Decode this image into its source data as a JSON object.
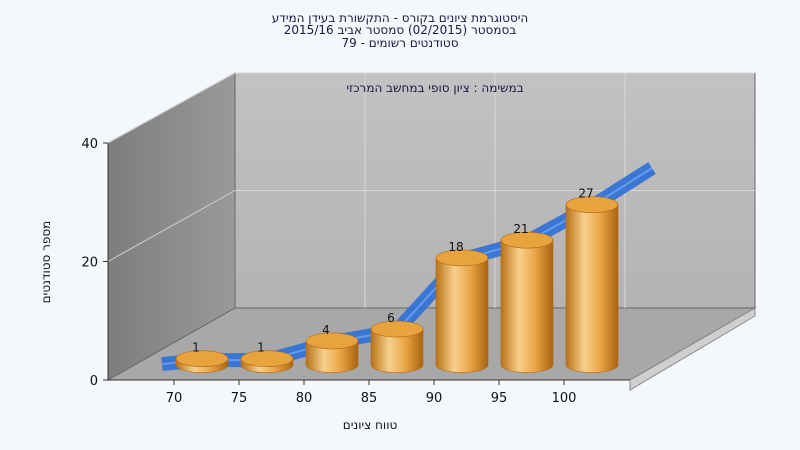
{
  "chart_data": {
    "type": "bar",
    "title_lines": [
      "היסטוגרמת ציונים בקורס - התקשורת בעידן המידע",
      "בסמסטר  (02/2015)  סמסטר אביב 2015/16",
      "סטודנטים רשומים - 79"
    ],
    "subtitle": "במשימה : ציון סופי במחשב המרכזי",
    "xlabel": "טווח ציונים",
    "ylabel": "מספר סטודנטים",
    "categories": [
      "70",
      "75",
      "80",
      "85",
      "90",
      "95",
      "100"
    ],
    "series": [
      {
        "values": [
          1,
          1,
          4,
          6,
          18,
          21,
          27
        ]
      }
    ],
    "trend": [
      1,
      1,
      4,
      6,
      18,
      21,
      27
    ],
    "yticks": [
      "0",
      "20",
      "40"
    ],
    "ylim": [
      0,
      40
    ],
    "grid": true,
    "colors": {
      "bar": "#e8a33e",
      "bar_light": "#f7d08c",
      "bar_dark": "#b06a14",
      "trend": "#2e6fd6",
      "back_wall": "#b9b9b9",
      "side_wall": "#8f8f8f",
      "floor": "#a9a9a9"
    }
  }
}
